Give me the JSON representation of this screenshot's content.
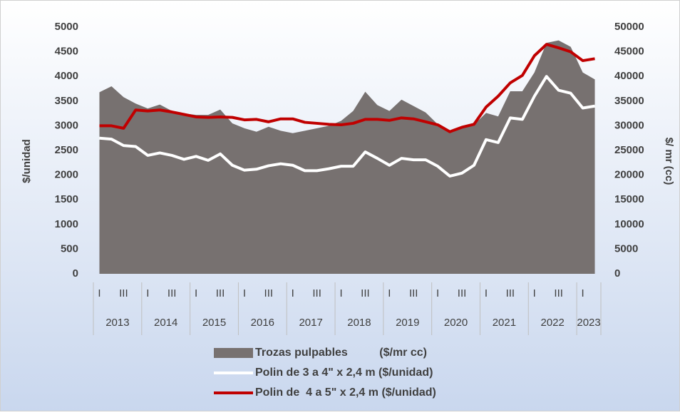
{
  "chart_data": {
    "type": "area-line",
    "categories": [
      "I",
      null,
      "III",
      null,
      "I",
      null,
      "III",
      null,
      "I",
      null,
      "III",
      null,
      "I",
      null,
      "III",
      null,
      "I",
      null,
      "III",
      null,
      "I",
      null,
      "III",
      null,
      "I",
      null,
      "III",
      null,
      "I",
      null,
      "III",
      null,
      "I",
      null,
      "III",
      null,
      "I",
      null,
      "III",
      null,
      "I",
      null
    ],
    "years": [
      "2013",
      "2014",
      "2015",
      "2016",
      "2017",
      "2018",
      "2019",
      "2020",
      "2021",
      "2022",
      "2023"
    ],
    "ylabel": "$/unidad",
    "y2label": "$/ mr (cc)",
    "ylim": [
      0,
      5000
    ],
    "yticks": [
      0,
      500,
      1000,
      1500,
      2000,
      2500,
      3000,
      3500,
      4000,
      4500,
      5000
    ],
    "y2lim": [
      0,
      50000
    ],
    "y2ticks": [
      0,
      5000,
      10000,
      15000,
      20000,
      25000,
      30000,
      35000,
      40000,
      45000,
      50000
    ],
    "series": [
      {
        "name": "Trozas pulpables          ($/mr cc)",
        "kind": "area",
        "axis": "y2",
        "color": "#777170",
        "values": [
          36800,
          38000,
          35800,
          34500,
          33500,
          34300,
          33000,
          32500,
          32200,
          32200,
          33300,
          30500,
          29500,
          28800,
          29800,
          29000,
          28500,
          29000,
          29500,
          30000,
          31000,
          33000,
          36900,
          34200,
          33000,
          35300,
          34000,
          32700,
          30300,
          28800,
          29500,
          30200,
          32600,
          31900,
          37000,
          37000,
          40800,
          46800,
          47300,
          46000,
          40800,
          39400
        ]
      },
      {
        "name": "Polin de 3 a 4\" x 2,4 m ($/unidad)",
        "kind": "line",
        "axis": "y",
        "color": "#ffffff",
        "values": [
          2750,
          2730,
          2600,
          2580,
          2400,
          2450,
          2400,
          2320,
          2380,
          2300,
          2430,
          2200,
          2100,
          2120,
          2190,
          2230,
          2200,
          2090,
          2090,
          2130,
          2180,
          2180,
          2470,
          2340,
          2200,
          2340,
          2310,
          2310,
          2180,
          1980,
          2040,
          2200,
          2720,
          2660,
          3160,
          3130,
          3600,
          4000,
          3720,
          3660,
          3360,
          3400
        ]
      },
      {
        "name": "Polin de  4 a 5\" x 2,4 m ($/unidad)",
        "kind": "line",
        "axis": "y",
        "color": "#c00000",
        "values": [
          3000,
          3000,
          2950,
          3320,
          3300,
          3320,
          3280,
          3230,
          3180,
          3170,
          3180,
          3170,
          3120,
          3130,
          3080,
          3140,
          3140,
          3070,
          3050,
          3030,
          3020,
          3050,
          3130,
          3130,
          3110,
          3160,
          3140,
          3080,
          3020,
          2880,
          2970,
          3030,
          3380,
          3600,
          3870,
          4020,
          4420,
          4650,
          4580,
          4500,
          4320,
          4360
        ]
      }
    ]
  }
}
